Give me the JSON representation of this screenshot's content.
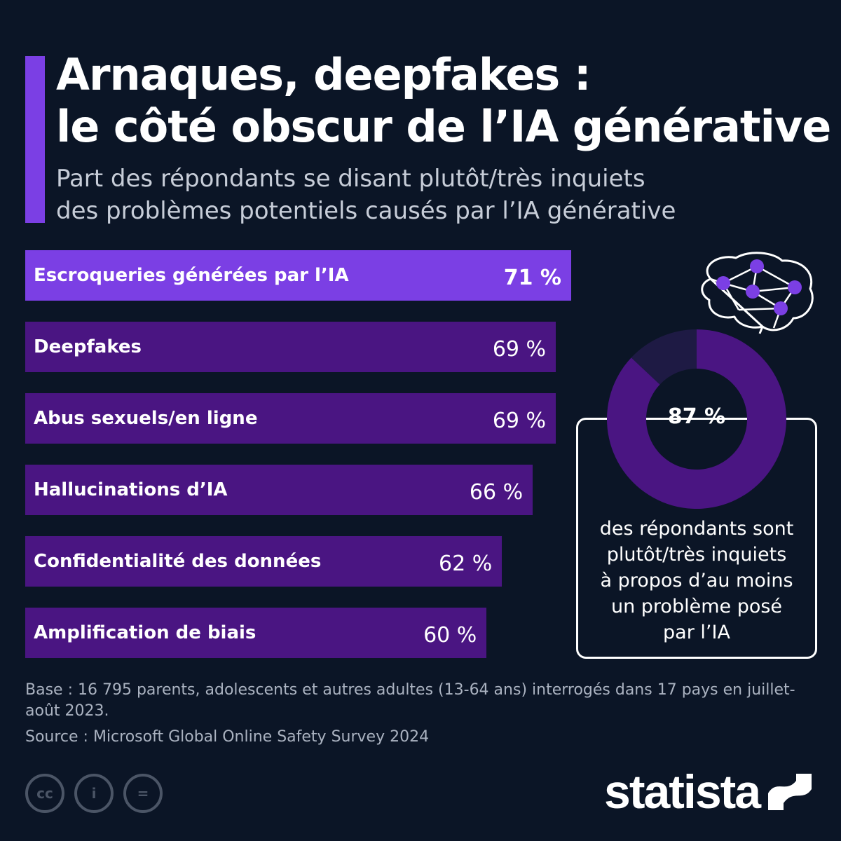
{
  "header": {
    "title_lines": [
      "Arnaques, deepfakes :",
      "le côté obscur de l’IA générative"
    ],
    "subtitle_lines": [
      "Part des répondants se disant plutôt/très inquiets",
      "des problèmes potentiels causés par l’IA générative"
    ]
  },
  "chart_data": {
    "type": "bar",
    "orientation": "horizontal",
    "categories": [
      "Escroqueries générées par l’IA",
      "Deepfakes",
      "Abus sexuels/en ligne",
      "Hallucinations d’IA",
      "Confidentialité des données",
      "Amplification de biais"
    ],
    "values": [
      71,
      69,
      69,
      66,
      62,
      60
    ],
    "value_labels": [
      "71 %",
      "69 %",
      "69 %",
      "66 %",
      "62 %",
      "60 %"
    ],
    "highlighted_index": 0,
    "unit": "%",
    "xlim": [
      0,
      100
    ],
    "grid": false,
    "colors": {
      "highlight": "#7b3fe4",
      "bar": "#4a1582"
    }
  },
  "callout": {
    "value": 87,
    "value_label": "87 %",
    "text_lines": [
      "des répondants sont",
      "plutôt/très inquiets",
      "à propos d’au moins",
      "un problème posé",
      "par l’IA"
    ],
    "icon": "brain-network-icon",
    "colors": {
      "fill": "#4a1582",
      "rest": "#1e1a44",
      "node": "#7b3fe4"
    }
  },
  "footer": {
    "base_note": "Base : 16 795 parents, adolescents et autres adultes (13-64 ans) interrogés dans 17 pays en juillet-août 2023.",
    "source": "Source : Microsoft Global Online Safety Survey 2024",
    "license_icons": [
      "cc-icon",
      "attribution-icon",
      "no-derivatives-icon"
    ],
    "license_glyphs": [
      "cc",
      "i",
      "="
    ],
    "brand": "statista"
  },
  "colors": {
    "background": "#0b1526",
    "accent": "#7b3fe4",
    "muted_text": "#aab2c0"
  }
}
